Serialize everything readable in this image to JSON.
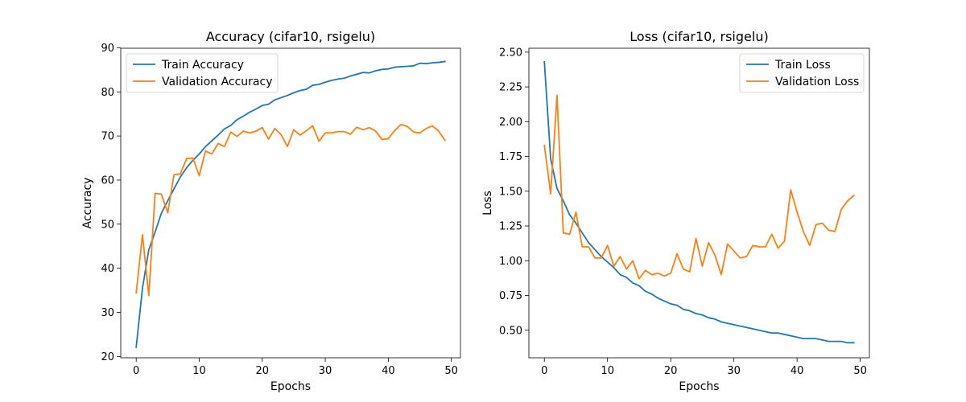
{
  "chart_data": [
    {
      "type": "line",
      "title": "Accuracy (cifar10, rsigelu)",
      "xlabel": "Epochs",
      "ylabel": "Accuracy",
      "xlim": [
        -2.45,
        51.45
      ],
      "ylim": [
        19.7,
        89.9
      ],
      "xticks": [
        0,
        10,
        20,
        30,
        40,
        50
      ],
      "yticks": [
        20,
        30,
        40,
        50,
        60,
        70,
        80,
        90
      ],
      "grid": false,
      "legend_position": "upper-left",
      "x": [
        0,
        1,
        2,
        3,
        4,
        5,
        6,
        7,
        8,
        9,
        10,
        11,
        12,
        13,
        14,
        15,
        16,
        17,
        18,
        19,
        20,
        21,
        22,
        23,
        24,
        25,
        26,
        27,
        28,
        29,
        30,
        31,
        32,
        33,
        34,
        35,
        36,
        37,
        38,
        39,
        40,
        41,
        42,
        43,
        44,
        45,
        46,
        47,
        48,
        49
      ],
      "series": [
        {
          "name": "Train Accuracy",
          "color": "#1f77b4",
          "values": [
            22.1,
            35.5,
            44.2,
            48.2,
            52.5,
            55.3,
            58.0,
            60.7,
            62.8,
            64.5,
            65.9,
            67.6,
            68.9,
            70.2,
            71.6,
            72.4,
            73.7,
            74.5,
            75.4,
            76.1,
            76.9,
            77.2,
            78.2,
            78.7,
            79.2,
            79.8,
            80.3,
            80.6,
            81.5,
            81.7,
            82.2,
            82.6,
            82.9,
            83.1,
            83.6,
            84.0,
            84.4,
            84.3,
            84.8,
            85.1,
            85.2,
            85.6,
            85.7,
            85.8,
            85.9,
            86.5,
            86.4,
            86.6,
            86.7,
            86.9
          ]
        },
        {
          "name": "Validation Accuracy",
          "color": "#ff7f0e",
          "values": [
            34.4,
            47.6,
            33.8,
            57.0,
            56.8,
            52.6,
            61.2,
            61.4,
            64.9,
            65.0,
            61.0,
            66.6,
            65.9,
            68.3,
            67.6,
            70.9,
            69.9,
            71.1,
            70.7,
            71.1,
            71.9,
            69.3,
            71.7,
            70.3,
            67.6,
            71.4,
            70.2,
            71.2,
            72.3,
            68.8,
            70.7,
            70.7,
            71.0,
            71.0,
            70.4,
            72.0,
            71.4,
            71.9,
            71.1,
            69.2,
            69.4,
            71.2,
            72.6,
            72.2,
            70.9,
            70.7,
            71.7,
            72.3,
            71.1,
            69.0
          ]
        }
      ]
    },
    {
      "type": "line",
      "title": "Loss (cifar10, rsigelu)",
      "xlabel": "Epochs",
      "ylabel": "Loss",
      "xlim": [
        -2.45,
        51.45
      ],
      "ylim": [
        0.302,
        2.528
      ],
      "xticks": [
        0,
        10,
        20,
        30,
        40,
        50
      ],
      "yticks": [
        0.5,
        0.75,
        1.0,
        1.25,
        1.5,
        1.75,
        2.0,
        2.25,
        2.5
      ],
      "ytick_labels": [
        "0.50",
        "0.75",
        "1.00",
        "1.25",
        "1.50",
        "1.75",
        "2.00",
        "2.25",
        "2.50"
      ],
      "grid": false,
      "legend_position": "upper-right",
      "x": [
        0,
        1,
        2,
        3,
        4,
        5,
        6,
        7,
        8,
        9,
        10,
        11,
        12,
        13,
        14,
        15,
        16,
        17,
        18,
        19,
        20,
        21,
        22,
        23,
        24,
        25,
        26,
        27,
        28,
        29,
        30,
        31,
        32,
        33,
        34,
        35,
        36,
        37,
        38,
        39,
        40,
        41,
        42,
        43,
        44,
        45,
        46,
        47,
        48,
        49
      ],
      "series": [
        {
          "name": "Train Loss",
          "color": "#1f77b4",
          "values": [
            2.43,
            1.73,
            1.52,
            1.43,
            1.33,
            1.27,
            1.2,
            1.13,
            1.08,
            1.03,
            0.99,
            0.95,
            0.9,
            0.88,
            0.84,
            0.82,
            0.78,
            0.76,
            0.73,
            0.71,
            0.69,
            0.68,
            0.65,
            0.64,
            0.62,
            0.61,
            0.59,
            0.58,
            0.56,
            0.55,
            0.54,
            0.53,
            0.52,
            0.51,
            0.5,
            0.49,
            0.48,
            0.48,
            0.47,
            0.46,
            0.45,
            0.44,
            0.44,
            0.44,
            0.43,
            0.42,
            0.42,
            0.42,
            0.41,
            0.41
          ]
        },
        {
          "name": "Validation Loss",
          "color": "#ff7f0e",
          "values": [
            1.83,
            1.48,
            2.19,
            1.2,
            1.19,
            1.35,
            1.1,
            1.1,
            1.02,
            1.02,
            1.11,
            0.96,
            1.03,
            0.94,
            1.0,
            0.87,
            0.93,
            0.9,
            0.91,
            0.89,
            0.91,
            1.05,
            0.94,
            0.92,
            1.16,
            0.96,
            1.13,
            1.04,
            0.9,
            1.12,
            1.07,
            1.02,
            1.03,
            1.11,
            1.1,
            1.1,
            1.19,
            1.09,
            1.14,
            1.51,
            1.35,
            1.21,
            1.11,
            1.26,
            1.27,
            1.22,
            1.21,
            1.37,
            1.43,
            1.47
          ]
        }
      ]
    }
  ]
}
